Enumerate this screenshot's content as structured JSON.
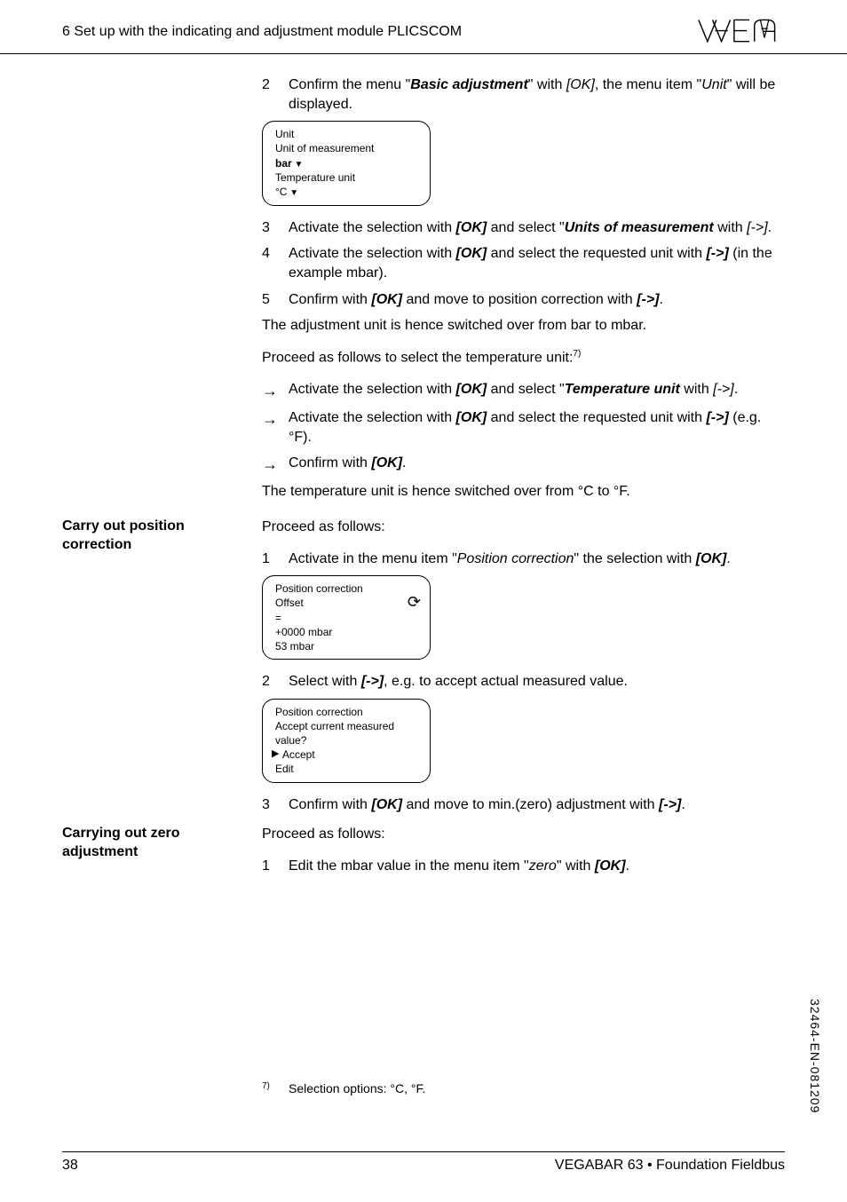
{
  "header": {
    "section_title": "6  Set up with the indicating and adjustment module PLICSCOM",
    "logo_text": "VEGA"
  },
  "blocks": [
    {
      "side": "",
      "items": [
        {
          "type": "step",
          "num": "2",
          "parts": [
            {
              "t": "Confirm the menu \""
            },
            {
              "t": "Basic adjustment",
              "cls": "bolditalic"
            },
            {
              "t": "\" with "
            },
            {
              "t": "[OK]",
              "cls": "italic"
            },
            {
              "t": ", the menu item \""
            },
            {
              "t": "Unit",
              "cls": "italic"
            },
            {
              "t": "\" will be displayed."
            }
          ]
        },
        {
          "type": "lcd",
          "lines": [
            {
              "t": "Unit"
            },
            {
              "t": "Unit of measurement"
            },
            {
              "t": "bar",
              "bold": true,
              "arrow": true
            },
            {
              "t": "Temperature unit"
            },
            {
              "t": "°C",
              "arrow": true
            }
          ]
        },
        {
          "type": "step",
          "num": "3",
          "parts": [
            {
              "t": "Activate the selection with "
            },
            {
              "t": "[OK]",
              "cls": "bolditalic"
            },
            {
              "t": " and select \""
            },
            {
              "t": "Units of measurement",
              "cls": "bolditalic"
            },
            {
              "t": " with "
            },
            {
              "t": "[->]",
              "cls": "italic"
            },
            {
              "t": "."
            }
          ]
        },
        {
          "type": "step",
          "num": "4",
          "parts": [
            {
              "t": "Activate the selection with "
            },
            {
              "t": "[OK]",
              "cls": "bolditalic"
            },
            {
              "t": " and select the requested unit with "
            },
            {
              "t": "[->]",
              "cls": "bolditalic"
            },
            {
              "t": " (in the example mbar)."
            }
          ]
        },
        {
          "type": "step",
          "num": "5",
          "parts": [
            {
              "t": "Confirm with "
            },
            {
              "t": "[OK]",
              "cls": "bolditalic"
            },
            {
              "t": " and move to position correction with "
            },
            {
              "t": "[->]",
              "cls": "bolditalic"
            },
            {
              "t": "."
            }
          ]
        },
        {
          "type": "para",
          "parts": [
            {
              "t": "The adjustment unit is hence switched over from bar to mbar."
            }
          ]
        },
        {
          "type": "para",
          "parts": [
            {
              "t": "Proceed as follows to select the temperature unit:"
            },
            {
              "t": "7)",
              "cls": "sup"
            }
          ]
        },
        {
          "type": "arrow",
          "parts": [
            {
              "t": "Activate the selection with "
            },
            {
              "t": "[OK]",
              "cls": "bolditalic"
            },
            {
              "t": " and select \""
            },
            {
              "t": "Temperature unit",
              "cls": "bolditalic"
            },
            {
              "t": " with "
            },
            {
              "t": "[->]",
              "cls": "italic"
            },
            {
              "t": "."
            }
          ]
        },
        {
          "type": "arrow",
          "parts": [
            {
              "t": "Activate the selection with "
            },
            {
              "t": "[OK]",
              "cls": "bolditalic"
            },
            {
              "t": " and select the requested unit with "
            },
            {
              "t": "[->]",
              "cls": "bolditalic"
            },
            {
              "t": " (e.g. °F)."
            }
          ]
        },
        {
          "type": "arrow",
          "parts": [
            {
              "t": "Confirm with "
            },
            {
              "t": "[OK]",
              "cls": "bolditalic"
            },
            {
              "t": "."
            }
          ]
        },
        {
          "type": "para",
          "parts": [
            {
              "t": "The temperature unit is hence switched over from °C to °F."
            }
          ]
        }
      ]
    },
    {
      "side": "Carry out position correction",
      "items": [
        {
          "type": "para",
          "parts": [
            {
              "t": "Proceed as follows:"
            }
          ]
        },
        {
          "type": "step",
          "num": "1",
          "parts": [
            {
              "t": "Activate in the menu item \""
            },
            {
              "t": "Position correction",
              "cls": "italic"
            },
            {
              "t": "\" the selection with "
            },
            {
              "t": "[OK]",
              "cls": "bolditalic"
            },
            {
              "t": "."
            }
          ]
        },
        {
          "type": "lcd",
          "icon": true,
          "lines": [
            {
              "t": "Position correction"
            },
            {
              "t": "Offset"
            },
            {
              "t": "="
            },
            {
              "t": "+0000 mbar"
            },
            {
              "t": "53 mbar"
            }
          ]
        },
        {
          "type": "step",
          "num": "2",
          "parts": [
            {
              "t": "Select with "
            },
            {
              "t": "[->]",
              "cls": "bolditalic"
            },
            {
              "t": ", e.g. to accept actual measured value."
            }
          ]
        },
        {
          "type": "lcd",
          "cls": "lcd2",
          "lines": [
            {
              "t": "Position correction"
            },
            {
              "t": "Accept current measured"
            },
            {
              "t": "value?"
            },
            {
              "t": "Accept",
              "pointer": true
            },
            {
              "t": "Edit"
            }
          ]
        },
        {
          "type": "step",
          "num": "3",
          "parts": [
            {
              "t": "Confirm with "
            },
            {
              "t": "[OK]",
              "cls": "bolditalic"
            },
            {
              "t": " and move to min.(zero) adjustment with "
            },
            {
              "t": "[->]",
              "cls": "bolditalic"
            },
            {
              "t": "."
            }
          ]
        }
      ]
    },
    {
      "side": "Carrying out zero adjustment",
      "items": [
        {
          "type": "para",
          "parts": [
            {
              "t": "Proceed as follows:"
            }
          ]
        },
        {
          "type": "step",
          "num": "1",
          "parts": [
            {
              "t": "Edit the mbar value in the menu item \""
            },
            {
              "t": "zero",
              "cls": "italic"
            },
            {
              "t": "\" with "
            },
            {
              "t": "[OK]",
              "cls": "bolditalic"
            },
            {
              "t": "."
            }
          ]
        }
      ]
    }
  ],
  "footnote": {
    "num": "7)",
    "text": "Selection options: °C, °F."
  },
  "footer": {
    "page": "38",
    "right": "VEGABAR 63 • Foundation Fieldbus"
  },
  "doc_id": "32464-EN-081209"
}
